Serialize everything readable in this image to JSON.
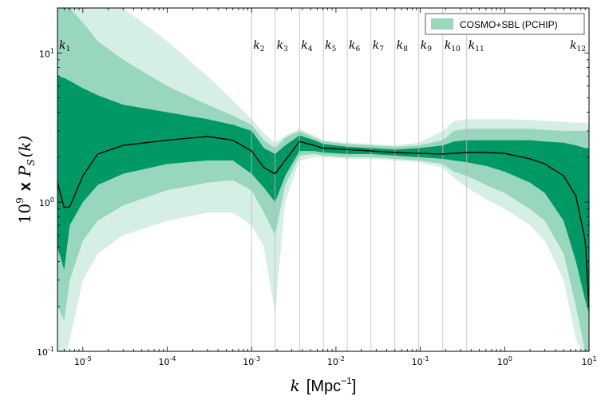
{
  "chart_data": {
    "type": "area",
    "title": "",
    "xscale": "log",
    "yscale": "log",
    "xlim": [
      5e-06,
      10
    ],
    "ylim": [
      0.1,
      20
    ],
    "xlabel": {
      "italic": "k",
      "text": "[Mpc",
      "exponent": "−1",
      "close": "]"
    },
    "ylabel": {
      "base": "10",
      "exponent": "9",
      "mid": "x",
      "italic": "P",
      "sub": "S",
      "arg": "(k)"
    },
    "x_ticks": [
      {
        "value": 1e-05,
        "base": "10",
        "exp": "-5"
      },
      {
        "value": 0.0001,
        "base": "10",
        "exp": "-4"
      },
      {
        "value": 0.001,
        "base": "10",
        "exp": "-3"
      },
      {
        "value": 0.01,
        "base": "10",
        "exp": "-2"
      },
      {
        "value": 0.1,
        "base": "10",
        "exp": "-1"
      },
      {
        "value": 1,
        "base": "10",
        "exp": "0"
      },
      {
        "value": 10,
        "base": "10",
        "exp": "1"
      }
    ],
    "y_ticks": [
      {
        "value": 0.1,
        "base": "10",
        "exp": "-1"
      },
      {
        "value": 1,
        "base": "10",
        "exp": "0"
      },
      {
        "value": 10,
        "base": "10",
        "exp": "1"
      }
    ],
    "knots": [
      {
        "label": "k",
        "sub": "1",
        "k": 5e-06
      },
      {
        "label": "k",
        "sub": "2",
        "k": 0.001
      },
      {
        "label": "k",
        "sub": "3",
        "k": 0.0019
      },
      {
        "label": "k",
        "sub": "4",
        "k": 0.0037
      },
      {
        "label": "k",
        "sub": "5",
        "k": 0.0071
      },
      {
        "label": "k",
        "sub": "6",
        "k": 0.0136
      },
      {
        "label": "k",
        "sub": "7",
        "k": 0.026
      },
      {
        "label": "k",
        "sub": "8",
        "k": 0.05
      },
      {
        "label": "k",
        "sub": "9",
        "k": 0.096
      },
      {
        "label": "k",
        "sub": "10",
        "k": 0.185
      },
      {
        "label": "k",
        "sub": "11",
        "k": 0.355
      },
      {
        "label": "k",
        "sub": "12",
        "k": 10
      }
    ],
    "legend": {
      "label": "COSMO+SBL (PCHIP)",
      "position": "top-right"
    },
    "colors": {
      "band_inner": "#009966",
      "band_middle": "#99d6be",
      "band_outer": "#d6efe4",
      "median": "#000000",
      "knot_line": "#bbbbbb"
    },
    "x": [
      5e-06,
      6e-06,
      7e-06,
      1e-05,
      1.5e-05,
      3e-05,
      0.0001,
      0.0003,
      0.0006,
      0.001,
      0.0014,
      0.0019,
      0.0025,
      0.0037,
      0.0055,
      0.0071,
      0.0136,
      0.026,
      0.05,
      0.096,
      0.185,
      0.25,
      0.355,
      0.6,
      1,
      2,
      3,
      5,
      7,
      9,
      10
    ],
    "series": [
      {
        "name": "median",
        "values": [
          1.35,
          0.92,
          0.93,
          1.5,
          2.1,
          2.4,
          2.6,
          2.75,
          2.6,
          2.2,
          1.7,
          1.55,
          1.9,
          2.55,
          2.4,
          2.3,
          2.25,
          2.2,
          2.15,
          2.12,
          2.1,
          2.12,
          2.15,
          2.15,
          2.12,
          1.95,
          1.8,
          1.5,
          1.1,
          0.55,
          0.2
        ]
      },
      {
        "name": "inner_low",
        "values": [
          0.5,
          0.35,
          0.7,
          1.0,
          1.3,
          1.55,
          1.8,
          1.9,
          1.9,
          1.55,
          1.25,
          1.0,
          1.5,
          2.2,
          2.2,
          2.15,
          2.1,
          2.1,
          2.05,
          2.0,
          1.95,
          1.9,
          1.85,
          1.75,
          1.6,
          1.35,
          1.15,
          0.75,
          0.4,
          0.22,
          0.18
        ]
      },
      {
        "name": "inner_high",
        "values": [
          7.0,
          6.8,
          6.5,
          5.8,
          5.2,
          4.5,
          4.0,
          3.6,
          3.3,
          3.0,
          2.3,
          2.1,
          2.4,
          2.8,
          2.6,
          2.45,
          2.35,
          2.3,
          2.25,
          2.3,
          2.4,
          2.55,
          2.6,
          2.6,
          2.6,
          2.6,
          2.55,
          2.5,
          2.4,
          2.3,
          2.3
        ]
      },
      {
        "name": "middle_low",
        "values": [
          0.2,
          0.16,
          0.3,
          0.55,
          0.75,
          0.95,
          1.2,
          1.35,
          1.4,
          1.2,
          0.85,
          0.6,
          1.3,
          2.05,
          2.1,
          2.05,
          2.0,
          2.0,
          1.95,
          1.9,
          1.8,
          1.6,
          1.5,
          1.3,
          1.15,
          0.9,
          0.75,
          0.45,
          0.2,
          0.1,
          0.09
        ]
      },
      {
        "name": "middle_high",
        "values": [
          20,
          20,
          20,
          16,
          12,
          9,
          6.0,
          4.5,
          3.8,
          3.3,
          2.6,
          2.3,
          2.7,
          3.0,
          2.7,
          2.55,
          2.45,
          2.4,
          2.35,
          2.4,
          2.6,
          3.0,
          3.1,
          3.1,
          3.1,
          3.1,
          3.05,
          3.0,
          3.0,
          3.0,
          3.0
        ]
      },
      {
        "name": "outer_low",
        "values": [
          0.09,
          0.09,
          0.12,
          0.3,
          0.45,
          0.6,
          0.75,
          0.85,
          0.85,
          0.7,
          0.5,
          0.18,
          1.0,
          1.9,
          2.0,
          2.0,
          1.95,
          1.95,
          1.9,
          1.85,
          1.7,
          1.45,
          1.25,
          1.05,
          0.9,
          0.7,
          0.55,
          0.3,
          0.12,
          0.09,
          0.09
        ]
      },
      {
        "name": "outer_high",
        "values": [
          20,
          20,
          20,
          20,
          20,
          20,
          12,
          7.0,
          4.8,
          3.6,
          2.9,
          2.5,
          2.8,
          3.1,
          2.8,
          2.6,
          2.5,
          2.45,
          2.4,
          2.5,
          3.0,
          3.5,
          3.6,
          3.6,
          3.6,
          3.55,
          3.5,
          3.45,
          3.4,
          3.4,
          3.4
        ]
      }
    ]
  }
}
